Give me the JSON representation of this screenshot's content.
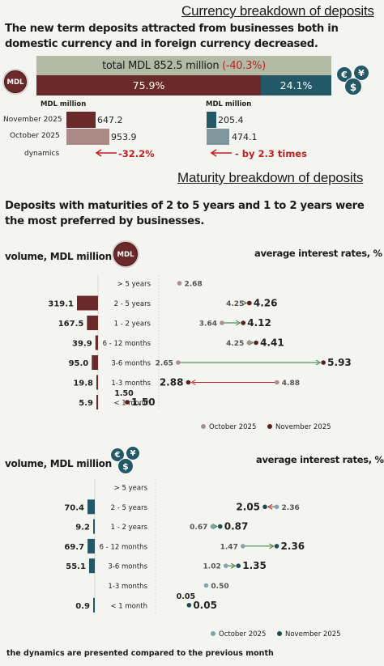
{
  "currency": {
    "title": "Currency breakdown of deposits",
    "lead": "The new term deposits attracted from businesses both in domestic currency and in foreign currency decreased.",
    "total_label": "total MDL 852.5 million",
    "total_change": "(-40.3%)",
    "mdl_share": "75.9%",
    "fx_share": "24.1%",
    "mdl_icon_label": "MDL",
    "fx_icon_symbols": [
      "€",
      "¥",
      "$"
    ],
    "mdl_unit": "MDL million",
    "fx_unit": "MDL million",
    "row_labels": [
      "November 2025",
      "October 2025",
      "dynamics"
    ],
    "mdl_values": [
      "647.2",
      "953.9"
    ],
    "fx_values": [
      "205.4",
      "474.1"
    ],
    "mdl_dynamics": "-32.2%",
    "fx_dynamics": "- by 2.3 times",
    "colors": {
      "mdl": "#6b2a2a",
      "fx": "#235866",
      "total_bar": "#b3bba6",
      "red": "#c0201e"
    }
  },
  "maturity": {
    "title": "Maturity breakdown of deposits",
    "lead": "Deposits with maturities of 2 to 5 years and 1 to 2 years were the most preferred by businesses.",
    "footnote": "the dynamics are presented compared to the previous month"
  },
  "chart_data": [
    {
      "type": "bar",
      "currency": "MDL",
      "volume_label": "volume, MDL million",
      "rates_label": "average interest rates, %",
      "categories": [
        "> 5 years",
        "2 - 5 years",
        "1 - 2 years",
        "6 - 12 months",
        "3-6 months",
        "1-3 months",
        "< 1 month"
      ],
      "volume_values": [
        null,
        319.1,
        167.5,
        39.9,
        95.0,
        19.8,
        5.9
      ],
      "volume_labels": [
        "",
        "319.1",
        "167.5",
        "39.9",
        "95.0",
        "19.8",
        "5.9"
      ],
      "rates": {
        "x_range": [
          0,
          7.5
        ],
        "series": [
          {
            "name": "October 2025",
            "values": [
              2.68,
              4.25,
              3.64,
              4.25,
              2.65,
              4.88,
              1.5
            ],
            "labels": [
              "2.68",
              "4.25",
              "3.64",
              "4.25",
              "2.65",
              "4.88",
              "1.50"
            ]
          },
          {
            "name": "November 2025",
            "values": [
              null,
              4.26,
              4.12,
              4.41,
              5.93,
              2.88,
              1.5
            ],
            "labels": [
              "",
              "4.26",
              "4.12",
              "4.41",
              "5.93",
              "2.88",
              "1.50"
            ]
          }
        ]
      },
      "colors": {
        "bar": "#6b2a2a",
        "october": "#a99090",
        "november": "#5a1f1f",
        "up": "#2e7d32",
        "down": "#c0201e"
      }
    },
    {
      "type": "bar",
      "currency": "foreign currency",
      "volume_label": "volume, MDL million",
      "rates_label": "average interest rates, %",
      "categories": [
        "> 5 years",
        "2 - 5 years",
        "1 - 2 years",
        "6 - 12 months",
        "3-6 months",
        "1-3 months",
        "< 1 month"
      ],
      "volume_values": [
        null,
        70.4,
        9.2,
        69.7,
        55.1,
        null,
        0.9
      ],
      "volume_labels": [
        "",
        "70.4",
        "9.2",
        "69.7",
        "55.1",
        "",
        "0.9"
      ],
      "rates": {
        "x_range": [
          0,
          3.8
        ],
        "series": [
          {
            "name": "October 2025",
            "values": [
              null,
              2.36,
              0.67,
              1.47,
              1.02,
              0.5,
              0.05
            ],
            "labels": [
              "",
              "2.36",
              "0.67",
              "1.47",
              "1.02",
              "0.50",
              "0.05"
            ]
          },
          {
            "name": "November 2025",
            "values": [
              null,
              2.05,
              0.87,
              2.36,
              1.35,
              null,
              0.05
            ],
            "labels": [
              "",
              "2.05",
              "0.87",
              "2.36",
              "1.35",
              "",
              "0.05"
            ]
          }
        ]
      },
      "colors": {
        "bar": "#235866",
        "october": "#7fa6ae",
        "november": "#1c4d57",
        "up": "#2e7d32",
        "down": "#c0201e"
      }
    }
  ]
}
